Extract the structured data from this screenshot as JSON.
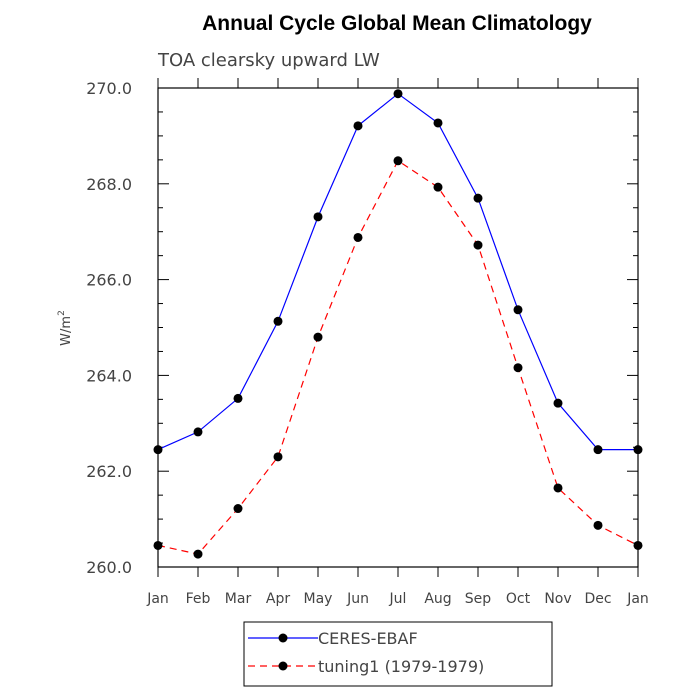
{
  "chart_data": {
    "type": "line",
    "title": "Annual Cycle Global Mean Climatology",
    "subtitle": "TOA clearsky upward LW",
    "ylabel": "W/m",
    "ylabel_superscript": "2",
    "xlabel": "",
    "categories": [
      "Jan",
      "Feb",
      "Mar",
      "Apr",
      "May",
      "Jun",
      "Jul",
      "Aug",
      "Sep",
      "Oct",
      "Nov",
      "Dec",
      "Jan"
    ],
    "ylim": [
      260.0,
      270.0
    ],
    "yticks": [
      "260.0",
      "262.0",
      "264.0",
      "266.0",
      "268.0",
      "270.0"
    ],
    "grid": false,
    "legend_position": "bottom",
    "series": [
      {
        "name": "CERES-EBAF",
        "color": "#0000ff",
        "line_style": "solid",
        "marker": "filled-circle",
        "values": [
          262.45,
          262.82,
          263.52,
          265.13,
          267.31,
          269.21,
          269.88,
          269.27,
          267.7,
          265.37,
          263.42,
          262.45,
          262.45
        ]
      },
      {
        "name": "tuning1 (1979-1979)",
        "color": "#ff0000",
        "line_style": "dashed",
        "marker": "filled-circle",
        "values": [
          260.45,
          260.27,
          261.22,
          262.3,
          264.8,
          266.88,
          268.48,
          267.93,
          266.72,
          264.16,
          261.65,
          260.87,
          260.45
        ]
      }
    ]
  }
}
